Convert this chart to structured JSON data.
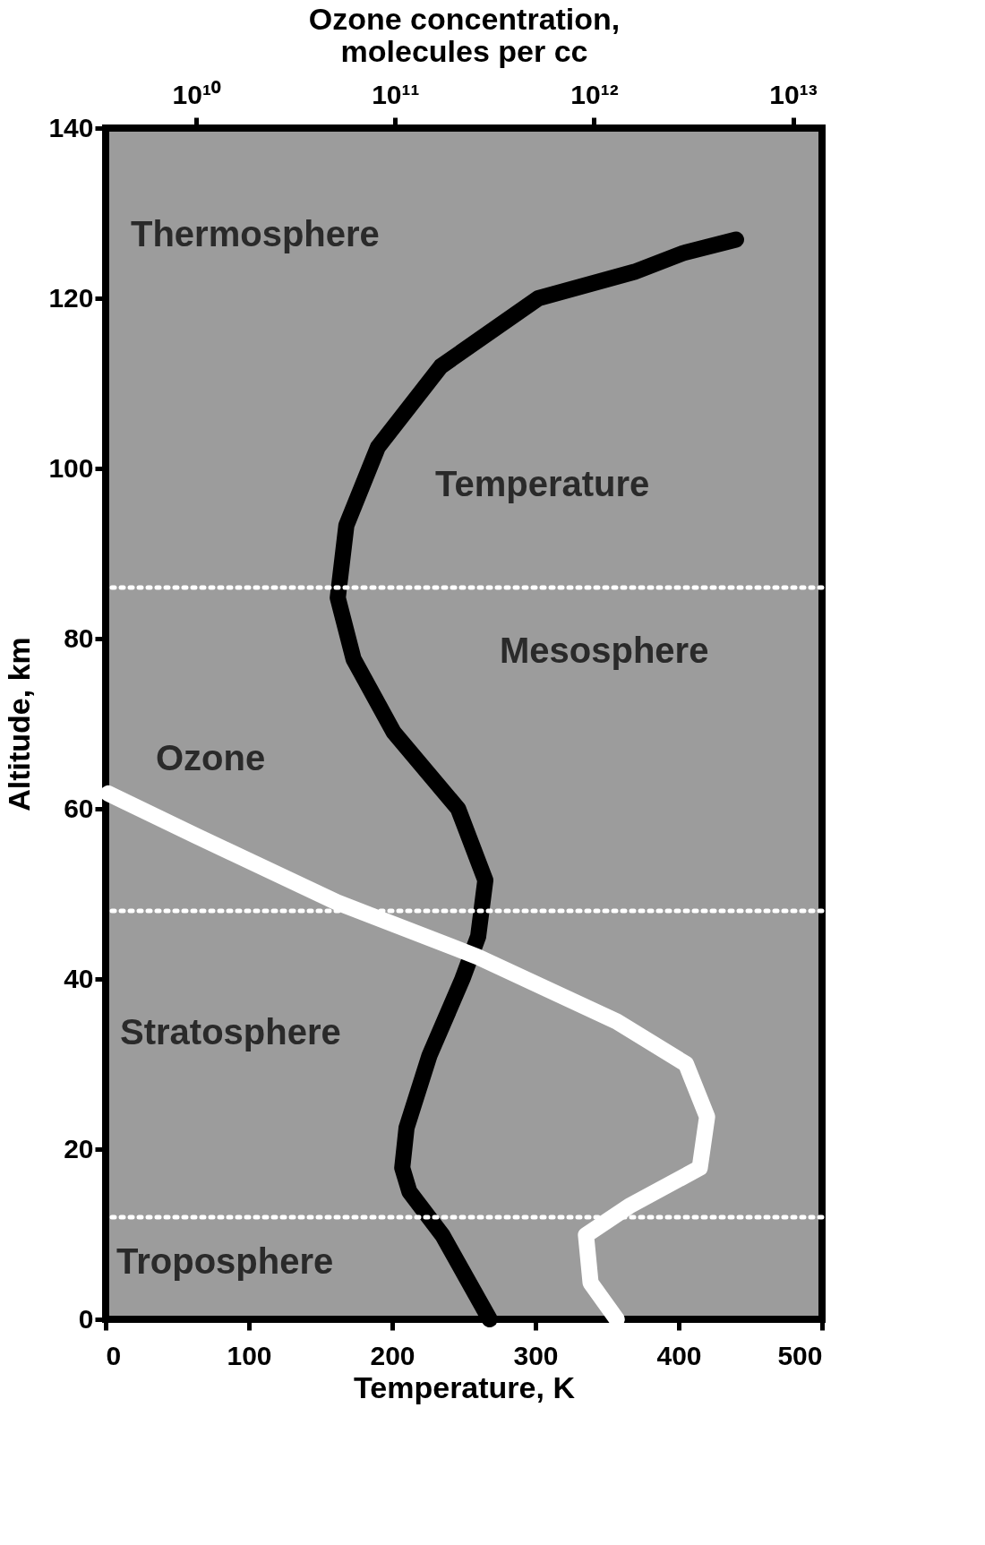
{
  "chart_data": {
    "type": "line",
    "xlabel": "Temperature, K",
    "ylabel": "Altitude, km",
    "x2label": "Ozone concentration,\nmolecules per cc",
    "xlim": [
      0,
      500
    ],
    "xticks": [
      0,
      100,
      200,
      300,
      400,
      500
    ],
    "ylim": [
      0,
      140
    ],
    "yticks": [
      0,
      20,
      40,
      60,
      80,
      100,
      120,
      140
    ],
    "x2lim": [
      3500000000,
      14000000000000
    ],
    "log": "x2",
    "x2ticks": [
      {
        "value": 10000000000,
        "label": "10¹⁰"
      },
      {
        "value": 100000000000,
        "label": "10¹¹"
      },
      {
        "value": 1000000000000,
        "label": "10¹²"
      },
      {
        "value": 10000000000000,
        "label": "10¹³"
      }
    ],
    "grid": false,
    "marker": "none",
    "line_style": "solid",
    "series": [
      {
        "color": "#000000",
        "x": [
          268,
          235,
          212,
          207,
          210,
          226,
          249,
          260,
          265,
          246,
          201,
          173,
          162,
          168,
          190,
          234,
          302,
          369,
          403,
          440
        ],
        "values": [
          0,
          9.9,
          15,
          17.8,
          22.5,
          31,
          40,
          45,
          51.6,
          60,
          69,
          77.6,
          84.8,
          93.3,
          102.5,
          112,
          120,
          123.1,
          125.3,
          126.9
        ]
      },
      {
        "color": "#ffffff",
        "axis": "x2",
        "x": [
          3600000000,
          10000000000,
          51000000000,
          260000000000,
          1300000000000,
          2900000000000,
          3700000000000,
          3400000000000,
          1500000000000,
          910000000000,
          960000000000,
          1300000000000
        ],
        "values": [
          61.8,
          56.8,
          49,
          42.6,
          35,
          30,
          23.8,
          17.8,
          13.3,
          9.9,
          4.3,
          0
        ]
      }
    ],
    "ref_lines": [
      {
        "axis": "y",
        "value": 86,
        "color": "#ffffff",
        "line_style": "dotted"
      },
      {
        "axis": "y",
        "value": 48,
        "color": "#ffffff",
        "line_style": "dotted"
      },
      {
        "axis": "y",
        "value": 12,
        "color": "#ffffff",
        "line_style": "dotted"
      }
    ],
    "annotations": [
      "Thermosphere",
      "Temperature",
      "Mesosphere",
      "Ozone",
      "Stratosphere",
      "Troposphere"
    ]
  }
}
